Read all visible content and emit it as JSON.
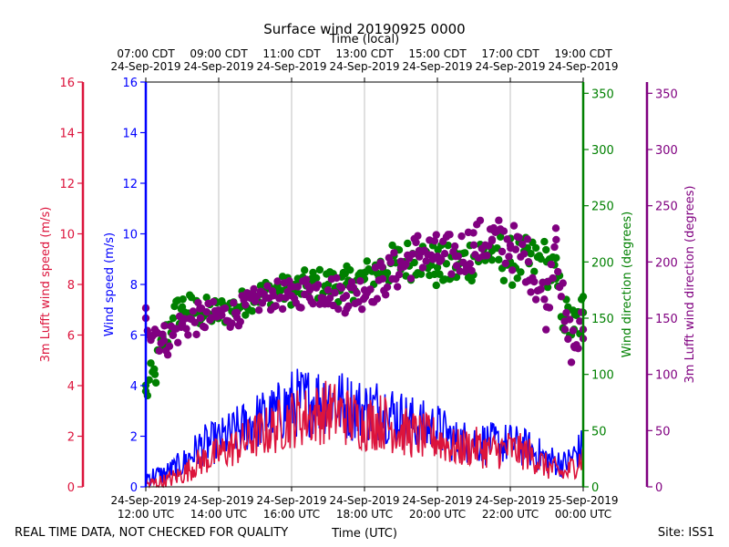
{
  "chart_data": {
    "type": "line+scatter",
    "title": "Surface wind 20190925 0000",
    "top_axis_label": "Time (local)",
    "bottom_axis_label": "Time (UTC)",
    "footer_left": "REAL TIME DATA, NOT CHECKED FOR QUALITY",
    "footer_right": "Site: ISS1",
    "x_range_hours_utc": [
      12,
      24
    ],
    "bottom_ticks": [
      {
        "hour": 12,
        "line1": "24-Sep-2019",
        "line2": "12:00 UTC"
      },
      {
        "hour": 14,
        "line1": "24-Sep-2019",
        "line2": "14:00 UTC"
      },
      {
        "hour": 16,
        "line1": "24-Sep-2019",
        "line2": "16:00 UTC"
      },
      {
        "hour": 18,
        "line1": "24-Sep-2019",
        "line2": "18:00 UTC"
      },
      {
        "hour": 20,
        "line1": "24-Sep-2019",
        "line2": "20:00 UTC"
      },
      {
        "hour": 22,
        "line1": "24-Sep-2019",
        "line2": "22:00 UTC"
      },
      {
        "hour": 24,
        "line1": "25-Sep-2019",
        "line2": "00:00 UTC"
      }
    ],
    "top_ticks": [
      {
        "hour": 12,
        "line1": "07:00 CDT",
        "line2": "24-Sep-2019"
      },
      {
        "hour": 14,
        "line1": "09:00 CDT",
        "line2": "24-Sep-2019"
      },
      {
        "hour": 16,
        "line1": "11:00 CDT",
        "line2": "24-Sep-2019"
      },
      {
        "hour": 18,
        "line1": "13:00 CDT",
        "line2": "24-Sep-2019"
      },
      {
        "hour": 20,
        "line1": "15:00 CDT",
        "line2": "24-Sep-2019"
      },
      {
        "hour": 22,
        "line1": "17:00 CDT",
        "line2": "24-Sep-2019"
      },
      {
        "hour": 24,
        "line1": "19:00 CDT",
        "line2": "24-Sep-2019"
      }
    ],
    "axes": {
      "lufft_speed": {
        "label": "3m Lufft wind speed (m/s)",
        "range": [
          0,
          16
        ],
        "ticks": [
          0,
          2,
          4,
          6,
          8,
          10,
          12,
          14,
          16
        ],
        "color": "#dc143c"
      },
      "wind_speed": {
        "label": "Wind speed (m/s)",
        "range": [
          0,
          16
        ],
        "ticks": [
          0,
          2,
          4,
          6,
          8,
          10,
          12,
          14,
          16
        ],
        "color": "#0000ff"
      },
      "wind_dir": {
        "label": "Wind direction (degrees)",
        "range": [
          0,
          360
        ],
        "ticks": [
          0,
          50,
          100,
          150,
          200,
          250,
          300,
          350
        ],
        "color": "#008000"
      },
      "lufft_dir": {
        "label": "3m Lufft wind direction (degrees)",
        "range": [
          0,
          360
        ],
        "ticks": [
          0,
          50,
          100,
          150,
          200,
          250,
          300,
          350
        ],
        "color": "#800080"
      }
    },
    "series": [
      {
        "name": "Wind speed",
        "axis": "wind_speed",
        "style": "line",
        "color": "#0000ff",
        "hours": [
          12.0,
          12.5,
          13.0,
          13.5,
          14.0,
          14.5,
          15.0,
          15.5,
          16.0,
          16.5,
          17.0,
          17.5,
          18.0,
          18.5,
          19.0,
          19.5,
          20.0,
          20.5,
          21.0,
          21.5,
          22.0,
          22.5,
          23.0,
          23.5,
          24.0
        ],
        "values": [
          0.4,
          0.5,
          0.9,
          1.6,
          1.8,
          2.2,
          2.6,
          2.8,
          3.3,
          3.4,
          3.5,
          3.2,
          3.0,
          3.1,
          2.7,
          2.4,
          2.3,
          1.8,
          1.8,
          1.7,
          1.7,
          1.5,
          1.1,
          0.9,
          1.6
        ]
      },
      {
        "name": "3m Lufft wind speed",
        "axis": "lufft_speed",
        "style": "line",
        "color": "#dc143c",
        "hours": [
          12.0,
          12.5,
          13.0,
          13.5,
          14.0,
          14.5,
          15.0,
          15.5,
          16.0,
          16.5,
          17.0,
          17.5,
          18.0,
          18.5,
          19.0,
          19.5,
          20.0,
          20.5,
          21.0,
          21.5,
          22.0,
          22.5,
          23.0,
          23.5,
          24.0
        ],
        "values": [
          0.1,
          0.2,
          0.5,
          1.0,
          1.3,
          1.6,
          2.0,
          2.3,
          2.7,
          2.8,
          3.0,
          2.8,
          2.5,
          2.6,
          2.2,
          2.0,
          1.9,
          1.5,
          1.6,
          1.4,
          1.5,
          1.3,
          0.8,
          0.5,
          1.2
        ]
      },
      {
        "name": "Wind direction",
        "axis": "wind_dir",
        "style": "scatter",
        "color": "#008000",
        "hours": [
          12.0,
          12.25,
          12.5,
          12.75,
          13.0,
          13.5,
          14.0,
          14.5,
          15.0,
          15.5,
          16.0,
          16.5,
          17.0,
          17.5,
          18.0,
          18.5,
          19.0,
          19.5,
          20.0,
          20.5,
          21.0,
          21.5,
          22.0,
          22.5,
          23.0,
          23.25,
          23.5,
          23.75,
          24.0
        ],
        "values": [
          85,
          100,
          130,
          150,
          160,
          155,
          155,
          160,
          170,
          175,
          175,
          180,
          180,
          180,
          185,
          195,
          200,
          205,
          195,
          195,
          205,
          210,
          200,
          200,
          200,
          185,
          150,
          140,
          155
        ]
      },
      {
        "name": "3m Lufft wind direction",
        "axis": "lufft_dir",
        "style": "scatter",
        "color": "#800080",
        "hours": [
          12.0,
          12.25,
          12.5,
          12.75,
          13.0,
          13.5,
          14.0,
          14.5,
          15.0,
          15.5,
          16.0,
          16.5,
          17.0,
          17.5,
          18.0,
          18.5,
          19.0,
          19.5,
          20.0,
          20.5,
          21.0,
          21.5,
          22.0,
          22.5,
          23.0,
          23.25,
          23.5,
          23.75,
          24.0
        ],
        "values": [
          150,
          140,
          130,
          135,
          145,
          150,
          152,
          155,
          165,
          170,
          170,
          175,
          175,
          170,
          175,
          185,
          195,
          210,
          205,
          205,
          215,
          220,
          215,
          200,
          160,
          230,
          140,
          125,
          140
        ]
      }
    ]
  }
}
